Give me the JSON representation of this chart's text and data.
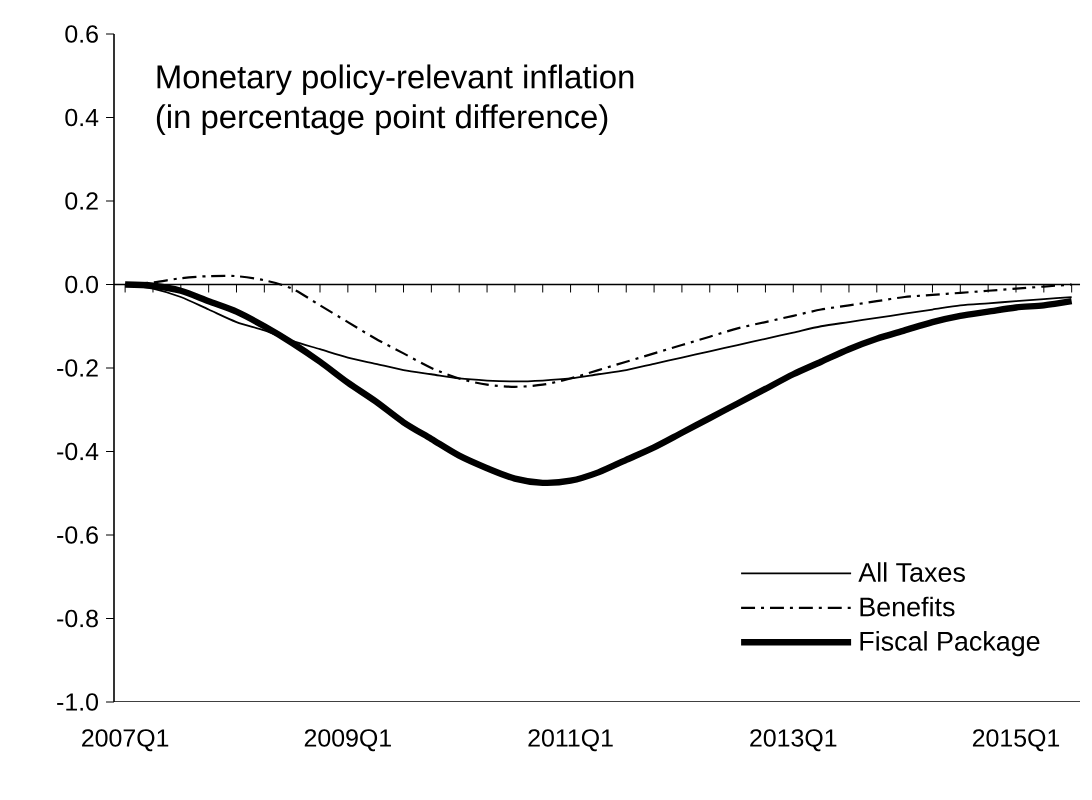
{
  "chart_data": {
    "type": "line",
    "title": "Monetary policy-relevant inflation",
    "subtitle": "(in percentage point difference)",
    "categories": [
      "2007Q1",
      null,
      null,
      null,
      null,
      null,
      null,
      null,
      "2009Q1",
      null,
      null,
      null,
      null,
      null,
      null,
      null,
      "2011Q1",
      null,
      null,
      null,
      null,
      null,
      null,
      null,
      "2013Q1",
      null,
      null,
      null,
      null,
      null,
      null,
      null,
      "2015Q1",
      null,
      null
    ],
    "ylim": [
      -1.0,
      0.6
    ],
    "yticks": [
      {
        "value": -1.0,
        "label": "-1.0"
      },
      {
        "value": -0.8,
        "label": "-0.8"
      },
      {
        "value": -0.6,
        "label": "-0.6"
      },
      {
        "value": -0.4,
        "label": "-0.4"
      },
      {
        "value": -0.2,
        "label": "-0.2"
      },
      {
        "value": 0.0,
        "label": "0.0"
      },
      {
        "value": 0.2,
        "label": "0.2"
      },
      {
        "value": 0.4,
        "label": "0.4"
      },
      {
        "value": 0.6,
        "label": "0.6"
      }
    ],
    "legend": "bottom right",
    "marker": "none",
    "series": [
      {
        "name": "All Taxes",
        "color": "#000000",
        "line_style": "solid",
        "values": [
          0,
          -0.01,
          -0.03,
          -0.06,
          -0.09,
          -0.11,
          -0.135,
          -0.155,
          -0.175,
          -0.19,
          -0.205,
          -0.215,
          -0.225,
          -0.23,
          -0.232,
          -0.23,
          -0.225,
          -0.215,
          -0.205,
          -0.19,
          -0.175,
          -0.16,
          -0.145,
          -0.13,
          -0.115,
          -0.1,
          -0.09,
          -0.08,
          -0.07,
          -0.06,
          -0.05,
          -0.045,
          -0.04,
          -0.035,
          -0.03
        ]
      },
      {
        "name": "Benefits",
        "color": "#000000",
        "line_style": "dashdot",
        "values": [
          0,
          0.005,
          0.015,
          0.02,
          0.02,
          0.01,
          -0.01,
          -0.05,
          -0.09,
          -0.13,
          -0.165,
          -0.2,
          -0.225,
          -0.24,
          -0.245,
          -0.24,
          -0.225,
          -0.205,
          -0.185,
          -0.165,
          -0.145,
          -0.125,
          -0.105,
          -0.09,
          -0.075,
          -0.06,
          -0.05,
          -0.04,
          -0.03,
          -0.025,
          -0.02,
          -0.015,
          -0.01,
          -0.005,
          0
        ]
      },
      {
        "name": "Fiscal Package",
        "color": "#000000",
        "line_style": "solid",
        "values": [
          0,
          -0.003,
          -0.015,
          -0.04,
          -0.065,
          -0.1,
          -0.14,
          -0.185,
          -0.235,
          -0.28,
          -0.33,
          -0.37,
          -0.41,
          -0.44,
          -0.465,
          -0.475,
          -0.47,
          -0.45,
          -0.42,
          -0.39,
          -0.355,
          -0.32,
          -0.285,
          -0.25,
          -0.215,
          -0.185,
          -0.155,
          -0.13,
          -0.11,
          -0.09,
          -0.075,
          -0.065,
          -0.055,
          -0.05,
          -0.04
        ]
      }
    ]
  }
}
